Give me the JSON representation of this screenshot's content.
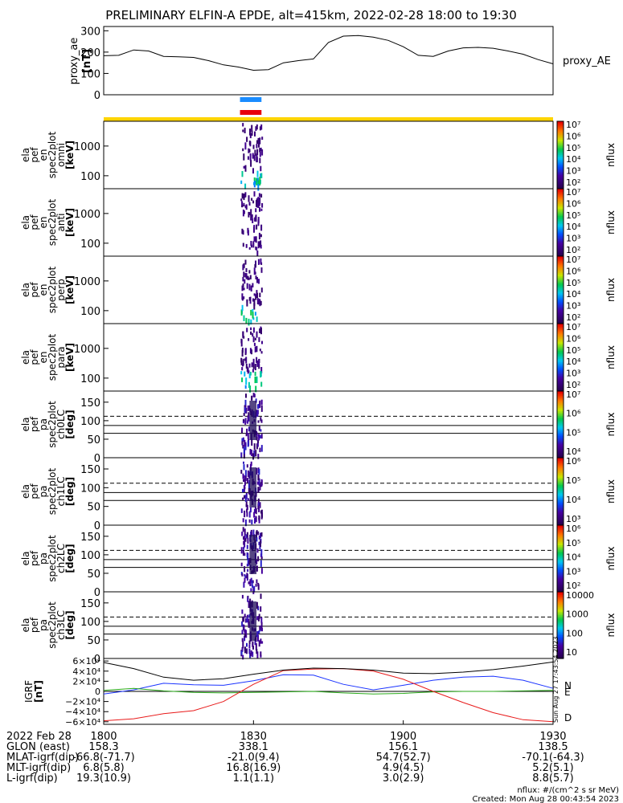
{
  "title": "PRELIMINARY ELFIN-A EPDE, alt=415km, 2022-02-28 18:00 to 19:30",
  "colors": {
    "orbit_blue": "#1a8cff",
    "orbit_red": "#e8000b",
    "bar_yellow": "#ffd400",
    "grf_n": "#1a33ff",
    "grf_e": "#2aaa1a",
    "grf_d": "#e81a1a"
  },
  "chart_data": [
    {
      "type": "line",
      "panel": "proxy_ae",
      "ylabel": "proxy_ae [nT]",
      "legend": "proxy_AE",
      "ylim": [
        0,
        320
      ],
      "yticks": [
        "300",
        "200",
        "100",
        "0"
      ],
      "x_minutes": [
        0,
        3,
        6,
        9,
        12,
        15,
        18,
        21,
        24,
        27,
        30,
        33,
        36,
        39,
        42,
        45,
        48,
        51,
        54,
        57,
        60,
        63,
        66,
        69,
        72,
        75,
        78,
        81,
        84,
        87,
        90
      ],
      "values": [
        183,
        185,
        210,
        205,
        180,
        178,
        175,
        160,
        140,
        130,
        115,
        118,
        150,
        160,
        168,
        245,
        275,
        278,
        270,
        255,
        225,
        185,
        180,
        205,
        220,
        222,
        218,
        205,
        190,
        165,
        145
      ]
    },
    {
      "type": "heatmap",
      "panel": "spec_omni",
      "ylabel": [
        "ela",
        "pef",
        "en",
        "spec2plot",
        "omni",
        "[keV]"
      ],
      "yscale": "log",
      "yticks": [
        "1000",
        "100"
      ],
      "active_minutes": [
        27,
        31
      ]
    },
    {
      "type": "heatmap",
      "panel": "spec_anti",
      "ylabel": [
        "ela",
        "pef",
        "en",
        "spec2plot",
        "anti",
        "[keV]"
      ],
      "yscale": "log",
      "yticks": [
        "1000",
        "100"
      ],
      "active_minutes": [
        27,
        31
      ]
    },
    {
      "type": "heatmap",
      "panel": "spec_perp",
      "ylabel": [
        "ela",
        "pef",
        "en",
        "spec2plot",
        "perp",
        "[keV]"
      ],
      "yscale": "log",
      "yticks": [
        "1000",
        "100"
      ],
      "active_minutes": [
        27,
        31
      ]
    },
    {
      "type": "heatmap",
      "panel": "spec_para",
      "ylabel": [
        "ela",
        "pef",
        "en",
        "spec2plot",
        "para",
        "[keV]"
      ],
      "yscale": "log",
      "yticks": [
        "1000",
        "100"
      ],
      "active_minutes": [
        27,
        31
      ]
    },
    {
      "type": "heatmap",
      "panel": "pa_ch0",
      "ylabel": [
        "ela",
        "pef",
        "pa",
        "spec2plot",
        "ch0LC",
        "[deg]"
      ],
      "ylim": [
        0,
        180
      ],
      "yticks": [
        "150",
        "100",
        "50",
        "0"
      ],
      "lc_dashed": 112,
      "lc_solid": [
        87,
        66
      ]
    },
    {
      "type": "heatmap",
      "panel": "pa_ch1",
      "ylabel": [
        "ela",
        "pef",
        "pa",
        "spec2plot",
        "ch1LC",
        "[deg]"
      ],
      "ylim": [
        0,
        180
      ],
      "yticks": [
        "150",
        "100",
        "50",
        "0"
      ],
      "lc_dashed": 112,
      "lc_solid": [
        87,
        66
      ]
    },
    {
      "type": "heatmap",
      "panel": "pa_ch2",
      "ylabel": [
        "ela",
        "pef",
        "pa",
        "spec2plot",
        "ch2LC",
        "[deg]"
      ],
      "ylim": [
        0,
        180
      ],
      "yticks": [
        "150",
        "100",
        "50",
        "0"
      ],
      "lc_dashed": 112,
      "lc_solid": [
        87,
        66
      ]
    },
    {
      "type": "heatmap",
      "panel": "pa_ch3",
      "ylabel": [
        "ela",
        "pef",
        "pa",
        "spec2plot",
        "ch3LC",
        "[deg]"
      ],
      "ylim": [
        0,
        180
      ],
      "yticks": [
        "150",
        "100",
        "50",
        "0"
      ],
      "lc_dashed": 112,
      "lc_solid": [
        87,
        66
      ]
    },
    {
      "type": "line",
      "panel": "igrf",
      "ylabel": "IGRF [nT]",
      "ylim": [
        -65000,
        65000
      ],
      "yticks": [
        "6×10⁴",
        "4×10⁴",
        "2×10⁴",
        "0",
        "−2×10⁴",
        "−4×10⁴",
        "−6×10⁴"
      ],
      "x_minutes": [
        0,
        6,
        12,
        18,
        24,
        30,
        36,
        42,
        48,
        54,
        60,
        66,
        72,
        78,
        84,
        90
      ],
      "series": [
        {
          "name": "N",
          "values": [
            -5000,
            3000,
            16000,
            13000,
            12000,
            21000,
            33000,
            32000,
            14000,
            3000,
            12000,
            22000,
            28000,
            30000,
            22000,
            6000
          ]
        },
        {
          "name": "E",
          "values": [
            2000,
            6000,
            1000,
            -2000,
            -3000,
            -2000,
            -1000,
            0,
            -3000,
            -5000,
            -4000,
            -1000,
            0,
            0,
            1000,
            2000
          ]
        },
        {
          "name": "D",
          "values": [
            -58000,
            -54000,
            -44000,
            -38000,
            -20000,
            14000,
            41000,
            44000,
            45000,
            40000,
            24000,
            0,
            -22000,
            -42000,
            -56000,
            -60000
          ]
        },
        {
          "name": "",
          "values": [
            57000,
            45000,
            28000,
            22000,
            25000,
            34000,
            42000,
            46000,
            45000,
            42000,
            36000,
            35000,
            38000,
            43000,
            50000,
            58000
          ]
        }
      ]
    },
    {
      "type": "table",
      "panel": "ephemeris",
      "date": "2022 Feb 28",
      "x_tick_labels": [
        "1800",
        "1830",
        "1900",
        "1930"
      ],
      "rows": [
        {
          "label": "GLON (east)",
          "values": [
            "158.3",
            "338.1",
            "156.1",
            "138.5"
          ]
        },
        {
          "label": "MLAT-igrf(dip)",
          "values": [
            "-66.8(-71.7)",
            "-21.0(9.4)",
            "54.7(52.7)",
            "-70.1(-64.3)"
          ]
        },
        {
          "label": "MLT-igrf(dip)",
          "values": [
            "6.8(5.8)",
            "16.8(16.9)",
            "4.9(4.5)",
            "5.2(5.1)"
          ]
        },
        {
          "label": "L-igrf(dip)",
          "values": [
            "19.3(10.9)",
            "1.1(1.1)",
            "3.0(2.9)",
            "8.8(5.7)"
          ]
        }
      ]
    }
  ],
  "colorbars": [
    {
      "label": "nflux",
      "ticks": [
        "10⁷",
        "10⁶",
        "10⁵",
        "10⁴",
        "10³",
        "10²"
      ]
    },
    {
      "label": "nflux",
      "ticks": [
        "10⁷",
        "10⁶",
        "10⁵",
        "10⁴",
        "10³",
        "10²"
      ]
    },
    {
      "label": "nflux",
      "ticks": [
        "10⁷",
        "10⁶",
        "10⁵",
        "10⁴",
        "10³",
        "10²"
      ]
    },
    {
      "label": "nflux",
      "ticks": [
        "10⁷",
        "10⁶",
        "10⁵",
        "10⁴",
        "10³",
        "10²"
      ]
    },
    {
      "label": "nflux",
      "ticks": [
        "10⁷",
        "10⁶",
        "10⁵",
        "10⁴"
      ]
    },
    {
      "label": "nflux",
      "ticks": [
        "10⁶",
        "10⁵",
        "10⁴",
        "10³"
      ]
    },
    {
      "label": "nflux",
      "ticks": [
        "10⁶",
        "10⁵",
        "10⁴",
        "10³",
        "10²"
      ]
    },
    {
      "label": "nflux",
      "ticks": [
        "10000",
        "1000",
        "100",
        "10"
      ]
    }
  ],
  "footer": {
    "units": "nflux: #/(cm^2 s sr MeV)",
    "created": "Created: Mon Aug 28 00:43:54 2023",
    "side_stamp": "Sun Aug 27 17:43:54 2023"
  }
}
